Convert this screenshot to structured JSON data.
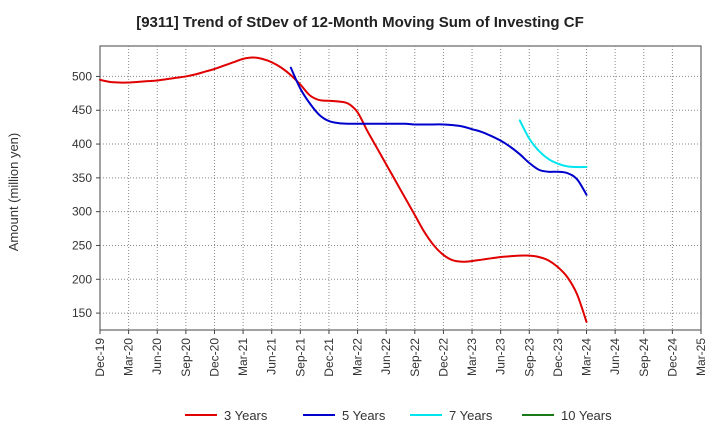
{
  "chart_data": {
    "type": "line",
    "title": "[9311]  Trend of StDev of 12-Month Moving Sum of Investing CF",
    "xlabel": "",
    "ylabel": "Amount (million yen)",
    "ylim": [
      125,
      545
    ],
    "yticks": [
      150,
      200,
      250,
      300,
      350,
      400,
      450,
      500
    ],
    "xticks": [
      "Dec-19",
      "Mar-20",
      "Jun-20",
      "Sep-20",
      "Dec-20",
      "Mar-21",
      "Jun-21",
      "Sep-21",
      "Dec-21",
      "Mar-22",
      "Jun-22",
      "Sep-22",
      "Dec-22",
      "Mar-23",
      "Jun-23",
      "Sep-23",
      "Dec-23",
      "Mar-24",
      "Jun-24",
      "Sep-24",
      "Dec-24",
      "Mar-25"
    ],
    "grid": true,
    "legend_position": "bottom",
    "series": [
      {
        "name": "3 Years",
        "color": "#e00000",
        "x": [
          "Dec-19",
          "Jan-20",
          "Feb-20",
          "Mar-20",
          "Apr-20",
          "May-20",
          "Jun-20",
          "Jul-20",
          "Aug-20",
          "Sep-20",
          "Oct-20",
          "Nov-20",
          "Dec-20",
          "Jan-21",
          "Feb-21",
          "Mar-21",
          "Apr-21",
          "May-21",
          "Jun-21",
          "Jul-21",
          "Aug-21",
          "Sep-21",
          "Oct-21",
          "Nov-21",
          "Dec-21",
          "Jan-22",
          "Feb-22",
          "Mar-22",
          "Apr-22",
          "May-22",
          "Jun-22",
          "Jul-22",
          "Aug-22",
          "Sep-22",
          "Oct-22",
          "Nov-22",
          "Dec-22",
          "Jan-23",
          "Feb-23",
          "Mar-23",
          "Apr-23",
          "May-23",
          "Jun-23",
          "Jul-23",
          "Aug-23",
          "Sep-23",
          "Oct-23",
          "Nov-23",
          "Dec-23",
          "Jan-24",
          "Feb-24",
          "Mar-24"
        ],
        "values": [
          495,
          492,
          491,
          491,
          492,
          493,
          494,
          496,
          498,
          500,
          503,
          507,
          511,
          516,
          521,
          526,
          528,
          526,
          521,
          513,
          502,
          488,
          472,
          465,
          464,
          463,
          460,
          447,
          420,
          395,
          370,
          345,
          320,
          295,
          270,
          250,
          236,
          228,
          226,
          227,
          229,
          231,
          233,
          234,
          235,
          235,
          233,
          228,
          218,
          203,
          178,
          137
        ]
      },
      {
        "name": "5 Years",
        "color": "#0000cc",
        "x": [
          "Aug-21",
          "Sep-21",
          "Oct-21",
          "Nov-21",
          "Dec-21",
          "Jan-22",
          "Feb-22",
          "Mar-22",
          "Apr-22",
          "May-22",
          "Jun-22",
          "Jul-22",
          "Aug-22",
          "Sep-22",
          "Oct-22",
          "Nov-22",
          "Dec-22",
          "Jan-23",
          "Feb-23",
          "Mar-23",
          "Apr-23",
          "May-23",
          "Jun-23",
          "Jul-23",
          "Aug-23",
          "Sep-23",
          "Oct-23",
          "Nov-23",
          "Dec-23",
          "Jan-24",
          "Feb-24",
          "Mar-24"
        ],
        "values": [
          513,
          482,
          460,
          443,
          434,
          431,
          430,
          430,
          430,
          430,
          430,
          430,
          430,
          429,
          429,
          429,
          429,
          428,
          426,
          422,
          418,
          412,
          405,
          396,
          385,
          372,
          362,
          359,
          359,
          357,
          348,
          325
        ]
      },
      {
        "name": "7 Years",
        "color": "#00e5ee",
        "x": [
          "Aug-23",
          "Sep-23",
          "Oct-23",
          "Nov-23",
          "Dec-23",
          "Jan-24",
          "Feb-24",
          "Mar-24"
        ],
        "values": [
          435,
          408,
          390,
          378,
          371,
          367,
          366,
          366
        ]
      },
      {
        "name": "10 Years",
        "color": "#1a7a1a",
        "x": [],
        "values": []
      }
    ]
  }
}
